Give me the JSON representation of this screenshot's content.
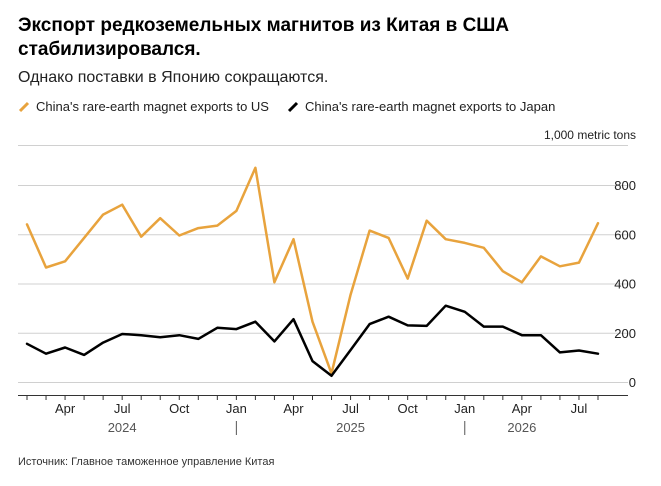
{
  "title": "Экспорт редкоземельных магнитов из Китая в США стабилизировался.",
  "subtitle": "Однако поставки в Японию сокращаются.",
  "source": "Источник: Главное таможенное управление Китая",
  "colors": {
    "us": "#E8A33D",
    "japan": "#000000",
    "grid": "#d0d0d0",
    "axis": "#333333"
  },
  "chart_data": {
    "type": "line",
    "title": "Экспорт редкоземельных магнитов из Китая в США стабилизировался.",
    "subtitle": "Однако поставки в Японию сокращаются.",
    "unit": "1,000 metric tons",
    "ylim": [
      0,
      900
    ],
    "yticks": [
      0,
      200,
      400,
      600,
      800
    ],
    "ytick_labels": [
      "0",
      "200",
      "400",
      "600",
      "800"
    ],
    "grid": true,
    "legend_position": "top-left",
    "x": [
      "2024-02",
      "2024-03",
      "2024-04",
      "2024-05",
      "2024-06",
      "2024-07",
      "2024-08",
      "2024-09",
      "2024-10",
      "2024-11",
      "2024-12",
      "2025-01",
      "2025-02",
      "2025-03",
      "2025-04",
      "2025-05",
      "2025-06",
      "2025-07",
      "2025-08",
      "2025-09",
      "2025-10",
      "2025-11",
      "2025-12",
      "2026-01",
      "2026-02",
      "2026-03",
      "2026-04",
      "2026-05",
      "2026-06",
      "2026-07",
      "2026-08"
    ],
    "xtick_labels": [
      {
        "date": "2024-04",
        "label": "Apr"
      },
      {
        "date": "2024-07",
        "label": "Jul"
      },
      {
        "date": "2024-10",
        "label": "Oct"
      },
      {
        "date": "2025-01",
        "label": "Jan"
      },
      {
        "date": "2025-04",
        "label": "Apr"
      },
      {
        "date": "2025-07",
        "label": "Jul"
      },
      {
        "date": "2025-10",
        "label": "Oct"
      },
      {
        "date": "2026-01",
        "label": "Jan"
      },
      {
        "date": "2026-04",
        "label": "Apr"
      },
      {
        "date": "2026-07",
        "label": "Jul"
      }
    ],
    "year_labels": [
      {
        "date": "2024-07",
        "label": "2024"
      },
      {
        "date": "2025-07",
        "label": "2025"
      },
      {
        "date": "2026-04",
        "label": "2026"
      }
    ],
    "year_dividers": [
      "2025-01",
      "2026-01"
    ],
    "series": [
      {
        "key": "us",
        "name": "China's rare-earth magnet exports to US",
        "values": [
          640,
          465,
          490,
          585,
          680,
          720,
          590,
          665,
          595,
          625,
          635,
          695,
          870,
          405,
          580,
          245,
          35,
          355,
          615,
          585,
          420,
          655,
          580,
          565,
          545,
          450,
          405,
          510,
          470,
          485,
          645
        ]
      },
      {
        "key": "japan",
        "name": "China's rare-earth magnet exports to Japan",
        "values": [
          155,
          115,
          140,
          110,
          160,
          195,
          190,
          182,
          190,
          175,
          220,
          215,
          245,
          165,
          255,
          85,
          25,
          130,
          235,
          265,
          230,
          228,
          310,
          285,
          225,
          225,
          190,
          190,
          120,
          128,
          115
        ]
      }
    ]
  }
}
